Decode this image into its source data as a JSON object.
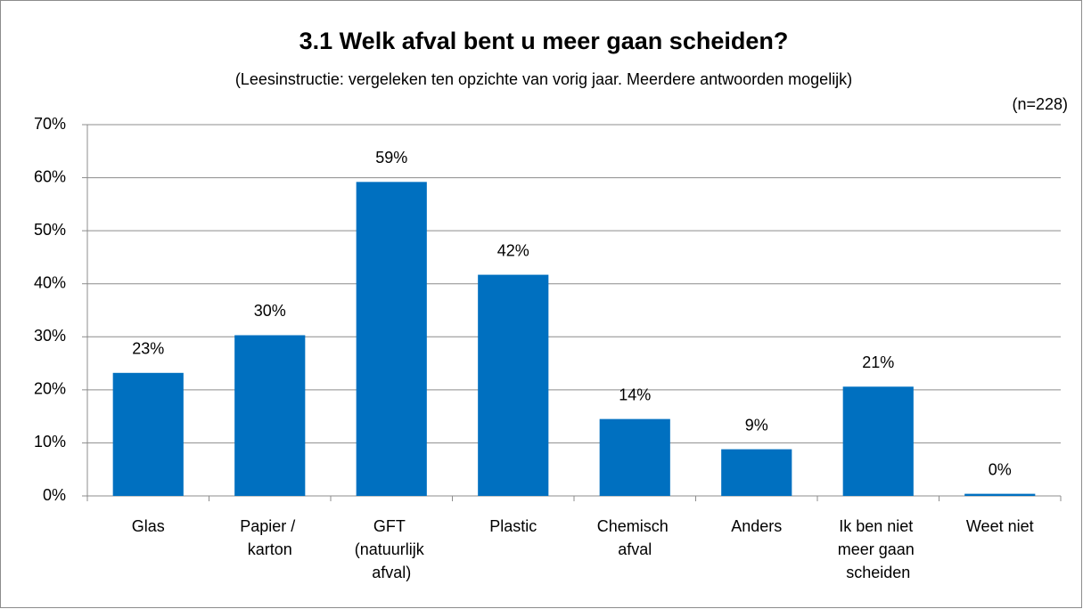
{
  "chart_data": {
    "type": "bar",
    "title": "3.1 Welk afval bent u meer gaan scheiden?",
    "subtitle": "(Leesinstructie: vergeleken ten opzichte van vorig jaar. Meerdere antwoorden mogelijk)",
    "annotation": "(n=228)",
    "categories": [
      "Glas",
      "Papier / karton",
      "GFT (natuurlijk afval)",
      "Plastic",
      "Chemisch afval",
      "Anders",
      "Ik ben niet meer gaan scheiden",
      "Weet niet"
    ],
    "values": [
      23.2,
      30.3,
      59.2,
      41.7,
      14.5,
      8.8,
      20.6,
      0.4
    ],
    "value_labels": [
      "23%",
      "30%",
      "59%",
      "42%",
      "14%",
      "9%",
      "21%",
      "0%"
    ],
    "color": "#0070c0",
    "ylim": [
      0,
      70
    ],
    "yticks": [
      {
        "value": 0,
        "label": "0%"
      },
      {
        "value": 10,
        "label": "10%"
      },
      {
        "value": 20,
        "label": "20%"
      },
      {
        "value": 30,
        "label": "30%"
      },
      {
        "value": 40,
        "label": "40%"
      },
      {
        "value": 50,
        "label": "50%"
      },
      {
        "value": 60,
        "label": "60%"
      },
      {
        "value": 70,
        "label": "70%"
      }
    ],
    "grid": true
  }
}
